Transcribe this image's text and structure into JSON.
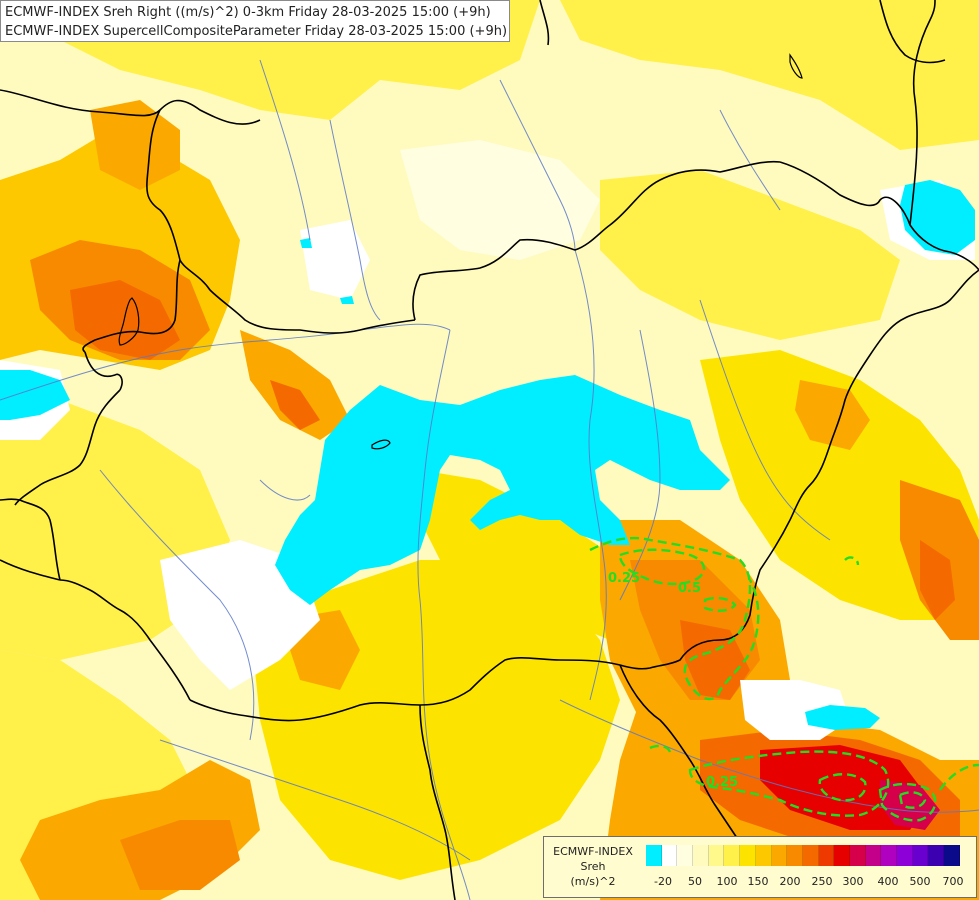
{
  "titles": {
    "line1": "ECMWF-INDEX Sreh Right ((m/s)^2) 0-3km Friday 28-03-2025 15:00 (+9h)",
    "line2": "ECMWF-INDEX SupercellCompositeParameter Friday 28-03-2025 15:00 (+9h)"
  },
  "legend": {
    "title_line1": "ECMWF-INDEX",
    "title_line2": "Sreh",
    "title_line3": "(m/s)^2",
    "colors": [
      "#00eeff",
      "#ffffff",
      "#fffee0",
      "#fffbbf",
      "#fff88a",
      "#fff04a",
      "#fde400",
      "#fdc800",
      "#fba800",
      "#f88a00",
      "#f46a00",
      "#ee3a00",
      "#e60000",
      "#d6004a",
      "#c4008a",
      "#b000c0",
      "#8e00d8",
      "#6a00d0",
      "#3c00b0",
      "#0a0a8a"
    ],
    "ticks": [
      "-20",
      "50",
      "100",
      "150",
      "200",
      "250",
      "300",
      "400",
      "500",
      "700"
    ]
  },
  "contours": {
    "labels": [
      "0.25",
      "0.5",
      "0.25"
    ]
  },
  "colors": {
    "border": "#000000",
    "river": "#5a78c8",
    "contour": "#22dd22",
    "low_value": "#00eeff"
  }
}
